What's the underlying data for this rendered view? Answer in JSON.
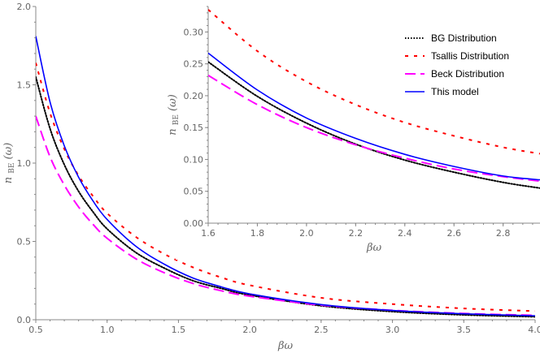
{
  "chart_data": [
    {
      "id": "main",
      "type": "line",
      "xlabel": "βω",
      "ylabel_base": "n",
      "ylabel_sub": "BE",
      "ylabel_arg": "(ω)",
      "xlim": [
        0.5,
        4.0
      ],
      "ylim": [
        0.0,
        2.0
      ],
      "xticks": [
        0.5,
        1.0,
        1.5,
        2.0,
        2.5,
        3.0,
        3.5,
        4.0
      ],
      "xtick_labels": [
        "0.5",
        "1.0",
        "1.5",
        "2.0",
        "2.5",
        "3.0",
        "3.5",
        "4.0"
      ],
      "yticks": [
        0.0,
        0.5,
        1.0,
        1.5,
        2.0
      ],
      "ytick_labels": [
        "0.0",
        "0.5",
        "1.0",
        "1.5",
        "2.0"
      ],
      "series": [
        {
          "name": "BG Distribution",
          "color": "#000000",
          "dash": "dotted",
          "x": [
            0.5,
            0.6,
            0.7,
            0.8,
            0.9,
            1.0,
            1.2,
            1.4,
            1.6,
            1.8,
            2.0,
            2.5,
            3.0,
            3.5,
            4.0
          ],
          "y": [
            1.55,
            1.22,
            0.99,
            0.82,
            0.69,
            0.58,
            0.43,
            0.33,
            0.25,
            0.2,
            0.157,
            0.089,
            0.052,
            0.031,
            0.019
          ]
        },
        {
          "name": "Tsallis Distribution",
          "color": "#ff0000",
          "dash": "dashed",
          "x": [
            0.5,
            0.6,
            0.7,
            0.8,
            0.9,
            1.0,
            1.2,
            1.4,
            1.6,
            1.8,
            2.0,
            2.5,
            3.0,
            3.5,
            4.0
          ],
          "y": [
            1.64,
            1.32,
            1.09,
            0.92,
            0.79,
            0.68,
            0.53,
            0.42,
            0.335,
            0.27,
            0.22,
            0.14,
            0.1,
            0.072,
            0.055
          ]
        },
        {
          "name": "Beck Distribution",
          "color": "#ff00ff",
          "dash": "longdash",
          "x": [
            0.5,
            0.6,
            0.7,
            0.8,
            0.9,
            1.0,
            1.2,
            1.4,
            1.6,
            1.8,
            2.0,
            2.5,
            3.0,
            3.5,
            4.0
          ],
          "y": [
            1.3,
            1.04,
            0.86,
            0.72,
            0.61,
            0.52,
            0.39,
            0.3,
            0.232,
            0.185,
            0.15,
            0.093,
            0.06,
            0.04,
            0.028
          ]
        },
        {
          "name": "This model",
          "color": "#0000ff",
          "dash": "solid",
          "x": [
            0.5,
            0.6,
            0.7,
            0.8,
            0.9,
            1.0,
            1.2,
            1.4,
            1.6,
            1.8,
            2.0,
            2.5,
            3.0,
            3.5,
            4.0
          ],
          "y": [
            1.81,
            1.39,
            1.11,
            0.91,
            0.76,
            0.64,
            0.47,
            0.355,
            0.267,
            0.21,
            0.165,
            0.097,
            0.059,
            0.038,
            0.025
          ]
        }
      ]
    },
    {
      "id": "inset",
      "type": "line",
      "xlabel": "βω",
      "ylabel_base": "n",
      "ylabel_sub": "BE",
      "ylabel_arg": "(ω)",
      "xlim": [
        1.6,
        2.95
      ],
      "ylim": [
        0.0,
        0.34
      ],
      "xticks": [
        1.6,
        1.8,
        2.0,
        2.2,
        2.4,
        2.6,
        2.8
      ],
      "xtick_labels": [
        "1.6",
        "1.8",
        "2.0",
        "2.2",
        "2.4",
        "2.6",
        "2.8"
      ],
      "yticks": [
        0.0,
        0.05,
        0.1,
        0.15,
        0.2,
        0.25,
        0.3
      ],
      "ytick_labels": [
        "0.00",
        "0.05",
        "0.10",
        "0.15",
        "0.20",
        "0.25",
        "0.30"
      ],
      "legend_position": "top-right",
      "series": [
        {
          "name": "BG Distribution",
          "color": "#000000",
          "dash": "dotted",
          "x": [
            1.6,
            1.8,
            2.0,
            2.2,
            2.4,
            2.6,
            2.8,
            2.95
          ],
          "y": [
            0.253,
            0.199,
            0.157,
            0.124,
            0.099,
            0.08,
            0.064,
            0.055
          ]
        },
        {
          "name": "Tsallis Distribution",
          "color": "#ff0000",
          "dash": "dashed",
          "x": [
            1.6,
            1.8,
            2.0,
            2.2,
            2.4,
            2.6,
            2.8,
            2.95
          ],
          "y": [
            0.335,
            0.27,
            0.222,
            0.186,
            0.158,
            0.137,
            0.119,
            0.109
          ]
        },
        {
          "name": "Beck Distribution",
          "color": "#ff00ff",
          "dash": "longdash",
          "x": [
            1.6,
            1.8,
            2.0,
            2.2,
            2.4,
            2.6,
            2.8,
            2.95
          ],
          "y": [
            0.232,
            0.186,
            0.15,
            0.123,
            0.102,
            0.085,
            0.073,
            0.066
          ]
        },
        {
          "name": "This model",
          "color": "#0000ff",
          "dash": "solid",
          "x": [
            1.6,
            1.8,
            2.0,
            2.2,
            2.4,
            2.6,
            2.8,
            2.95
          ],
          "y": [
            0.267,
            0.209,
            0.165,
            0.133,
            0.108,
            0.089,
            0.074,
            0.068
          ]
        }
      ]
    }
  ]
}
